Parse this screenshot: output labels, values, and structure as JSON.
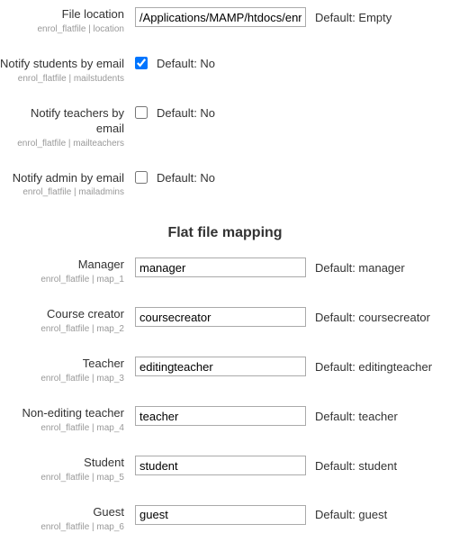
{
  "settings": {
    "file_location": {
      "label": "File location",
      "key": "enrol_flatfile | location",
      "value": "/Applications/MAMP/htdocs/enrolments.txt",
      "default": "Default: Empty"
    },
    "notify_students": {
      "label": "Notify students by email",
      "key": "enrol_flatfile | mailstudents",
      "checked": true,
      "default": "Default: No"
    },
    "notify_teachers": {
      "label": "Notify teachers by email",
      "key": "enrol_flatfile | mailteachers",
      "checked": false,
      "default": "Default: No"
    },
    "notify_admin": {
      "label": "Notify admin by email",
      "key": "enrol_flatfile | mailadmins",
      "checked": false,
      "default": "Default: No"
    }
  },
  "mapping_heading": "Flat file mapping",
  "mapping": {
    "manager": {
      "label": "Manager",
      "key": "enrol_flatfile | map_1",
      "value": "manager",
      "default": "Default: manager"
    },
    "coursecreator": {
      "label": "Course creator",
      "key": "enrol_flatfile | map_2",
      "value": "coursecreator",
      "default": "Default: coursecreator"
    },
    "teacher": {
      "label": "Teacher",
      "key": "enrol_flatfile | map_3",
      "value": "editingteacher",
      "default": "Default: editingteacher"
    },
    "noneditingteacher": {
      "label": "Non-editing teacher",
      "key": "enrol_flatfile | map_4",
      "value": "teacher",
      "default": "Default: teacher"
    },
    "student": {
      "label": "Student",
      "key": "enrol_flatfile | map_5",
      "value": "student",
      "default": "Default: student"
    },
    "guest": {
      "label": "Guest",
      "key": "enrol_flatfile | map_6",
      "value": "guest",
      "default": "Default: guest"
    }
  }
}
